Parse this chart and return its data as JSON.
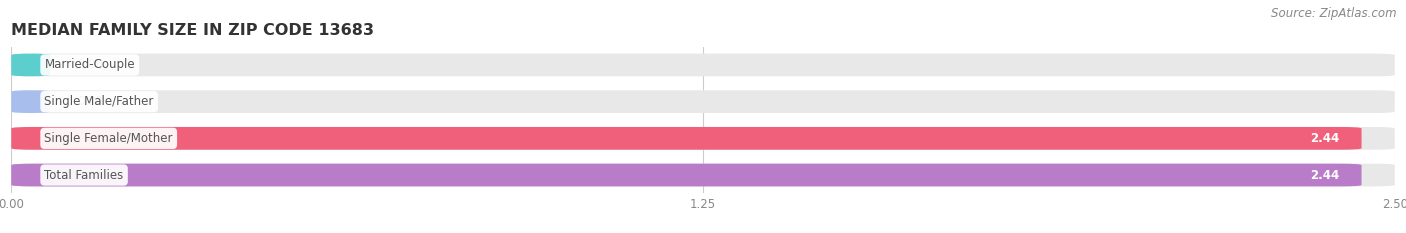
{
  "title": "MEDIAN FAMILY SIZE IN ZIP CODE 13683",
  "source": "Source: ZipAtlas.com",
  "categories": [
    "Married-Couple",
    "Single Male/Father",
    "Single Female/Mother",
    "Total Families"
  ],
  "values": [
    0.0,
    0.0,
    2.44,
    2.44
  ],
  "bar_colors": [
    "#5dcece",
    "#a8bfed",
    "#f0607a",
    "#b87cc8"
  ],
  "bar_bg_color": "#e8e8e8",
  "xlim": [
    0,
    2.5
  ],
  "xticks": [
    0.0,
    1.25,
    2.5
  ],
  "xtick_labels": [
    "0.00",
    "1.25",
    "2.50"
  ],
  "background_color": "#ffffff",
  "title_fontsize": 11.5,
  "label_fontsize": 8.5,
  "value_fontsize": 8.5,
  "source_fontsize": 8.5,
  "bar_height": 0.62,
  "grid_color": "#cccccc",
  "text_color": "#555555",
  "value_text_color_inside": "#ffffff",
  "value_text_color_outside": "#888888"
}
